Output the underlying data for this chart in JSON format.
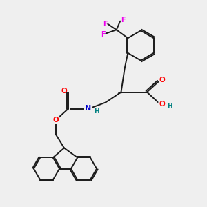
{
  "bg_color": "#efefef",
  "bond_color": "#1a1a1a",
  "atom_colors": {
    "O": "#ff0000",
    "N": "#0000cd",
    "F": "#ee00ee",
    "H_label": "#008080"
  },
  "figsize": [
    3.0,
    3.0
  ],
  "dpi": 100
}
